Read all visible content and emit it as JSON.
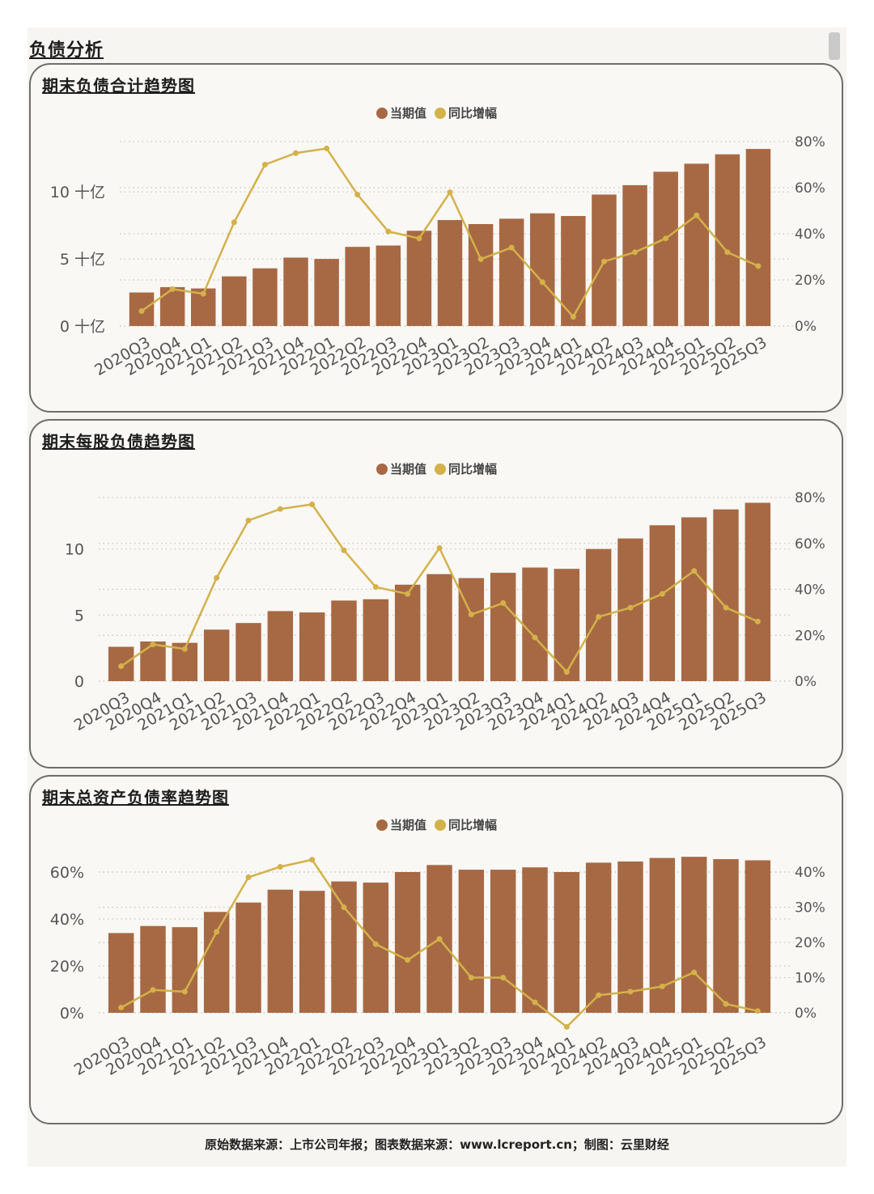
{
  "section_title": "负债分析",
  "footer": "原始数据来源：上市公司年报；图表数据来源：www.lcreport.cn；制图：云里财经",
  "colors": {
    "bar": "#a76944",
    "line": "#d4b14a",
    "grid": "#c8c3b8",
    "text": "#555555"
  },
  "chart_data": [
    {
      "type": "bar",
      "title": "期末负债合计趋势图",
      "legend": [
        "当期值",
        "同比增幅"
      ],
      "legend_position": "top-center",
      "categories": [
        "2020Q3",
        "2020Q4",
        "2021Q1",
        "2021Q2",
        "2021Q3",
        "2021Q4",
        "2022Q1",
        "2022Q2",
        "2022Q3",
        "2022Q4",
        "2023Q1",
        "2023Q2",
        "2023Q3",
        "2023Q4",
        "2024Q1",
        "2024Q2",
        "2024Q3",
        "2024Q4",
        "2025Q1",
        "2025Q2",
        "2025Q3"
      ],
      "series": [
        {
          "name": "当期值",
          "type": "bar",
          "values": [
            2.5,
            2.9,
            2.8,
            3.7,
            4.3,
            5.1,
            5.0,
            5.9,
            6.0,
            7.1,
            7.9,
            7.6,
            8.0,
            8.4,
            8.2,
            9.8,
            10.5,
            11.5,
            12.1,
            12.8,
            13.2
          ]
        },
        {
          "name": "同比增幅",
          "type": "line",
          "values": [
            6.5,
            16,
            14,
            45,
            70,
            75,
            77,
            57,
            41,
            38,
            58,
            29,
            34,
            19,
            4,
            28,
            32,
            38,
            48,
            32,
            26
          ]
        }
      ],
      "y_left": {
        "ticks": [
          "0 十亿",
          "5 十亿",
          "10 十亿"
        ],
        "tick_values": [
          0,
          5,
          10
        ],
        "max": 13.2
      },
      "y_right": {
        "ticks": [
          "0%",
          "20%",
          "40%",
          "60%",
          "80%"
        ],
        "tick_values": [
          0,
          20,
          40,
          60,
          80
        ]
      },
      "grid": true
    },
    {
      "type": "bar",
      "title": "期末每股负债趋势图",
      "legend": [
        "当期值",
        "同比增幅"
      ],
      "legend_position": "top-center",
      "categories": [
        "2020Q3",
        "2020Q4",
        "2021Q1",
        "2021Q2",
        "2021Q3",
        "2021Q4",
        "2022Q1",
        "2022Q2",
        "2022Q3",
        "2022Q4",
        "2023Q1",
        "2023Q2",
        "2023Q3",
        "2023Q4",
        "2024Q1",
        "2024Q2",
        "2024Q3",
        "2024Q4",
        "2025Q1",
        "2025Q2",
        "2025Q3"
      ],
      "series": [
        {
          "name": "当期值",
          "type": "bar",
          "values": [
            2.6,
            3.0,
            2.9,
            3.9,
            4.4,
            5.3,
            5.2,
            6.1,
            6.2,
            7.3,
            8.1,
            7.8,
            8.2,
            8.6,
            8.5,
            10.0,
            10.8,
            11.8,
            12.4,
            13.0,
            13.5
          ]
        },
        {
          "name": "同比增幅",
          "type": "line",
          "values": [
            6.5,
            16,
            14,
            45,
            70,
            75,
            77,
            57,
            41,
            38,
            58,
            29,
            34,
            19,
            4,
            28,
            32,
            38,
            48,
            32,
            26
          ]
        }
      ],
      "y_left": {
        "ticks": [
          "0",
          "5",
          "10"
        ],
        "tick_values": [
          0,
          5,
          10
        ],
        "max": 13.8
      },
      "y_right": {
        "ticks": [
          "0%",
          "20%",
          "40%",
          "60%",
          "80%"
        ],
        "tick_values": [
          0,
          20,
          40,
          60,
          80
        ]
      },
      "grid": true
    },
    {
      "type": "bar",
      "title": "期末总资产负债率趋势图",
      "legend": [
        "当期值",
        "同比增幅"
      ],
      "legend_position": "top-center",
      "categories": [
        "2020Q3",
        "2020Q4",
        "2021Q1",
        "2021Q2",
        "2021Q3",
        "2021Q4",
        "2022Q1",
        "2022Q2",
        "2022Q3",
        "2022Q4",
        "2023Q1",
        "2023Q2",
        "2023Q3",
        "2023Q4",
        "2024Q1",
        "2024Q2",
        "2024Q3",
        "2024Q4",
        "2025Q1",
        "2025Q2",
        "2025Q3"
      ],
      "series": [
        {
          "name": "当期值",
          "type": "bar",
          "values": [
            34,
            37,
            36.5,
            43,
            47,
            52.5,
            52,
            56,
            55.5,
            60,
            63,
            61,
            61,
            62,
            60,
            64,
            64.5,
            66,
            66.5,
            65.5,
            65
          ]
        },
        {
          "name": "同比增幅",
          "type": "line",
          "values": [
            1.5,
            6.5,
            6,
            23,
            38.5,
            41.5,
            43.5,
            30,
            19.5,
            15,
            21,
            10,
            10,
            3,
            -4,
            5,
            6,
            7.5,
            11.5,
            2.5,
            0.5
          ]
        }
      ],
      "y_left": {
        "ticks": [
          "0%",
          "20%",
          "40%",
          "60%"
        ],
        "tick_values": [
          0,
          20,
          40,
          60
        ],
        "max": 64
      },
      "y_right": {
        "ticks": [
          "0%",
          "10%",
          "20%",
          "30%",
          "40%"
        ],
        "tick_values": [
          0,
          10,
          20,
          30,
          40
        ]
      },
      "grid": true
    }
  ]
}
